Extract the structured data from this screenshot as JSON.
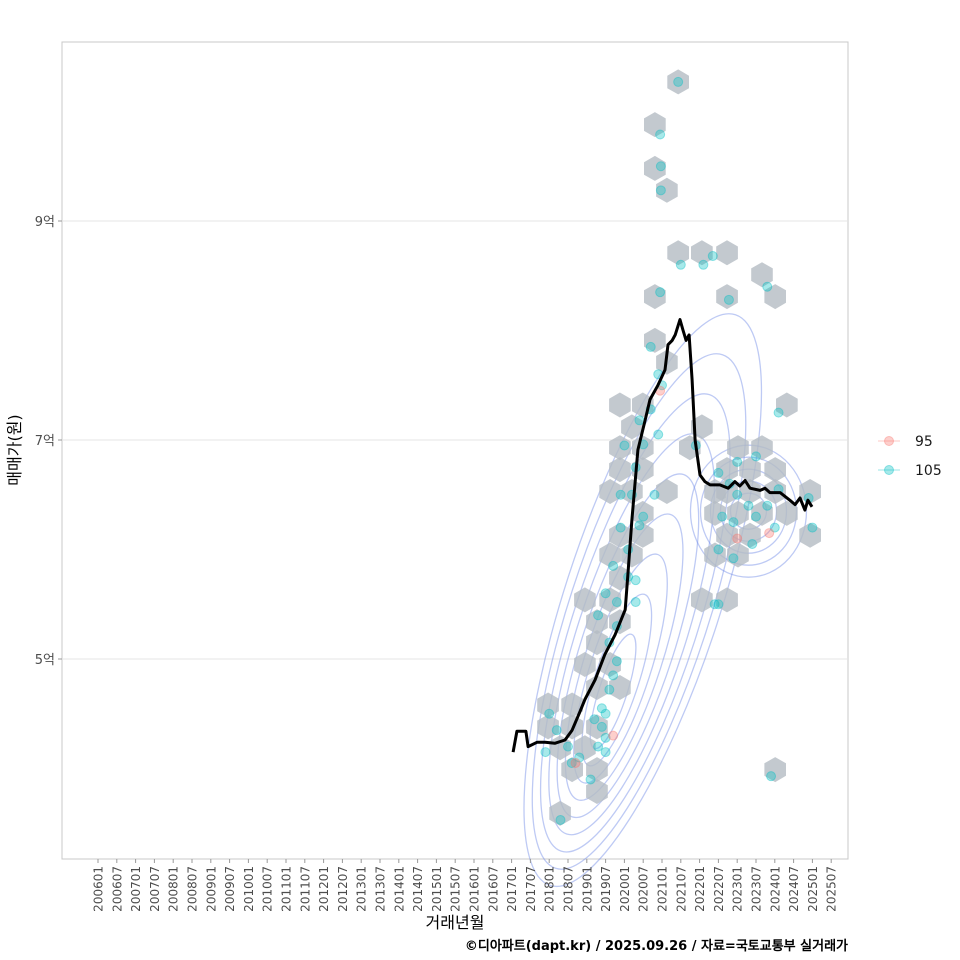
{
  "chart_data": {
    "type": "scatter",
    "title": "",
    "xlabel": "거래년월",
    "ylabel": "매매가(원)",
    "caption": "©디아파트(dapt.kr) / 2025.09.26 / 자료=국토교통부 실거래가",
    "xlim": [
      2004.9,
      2025.9
    ],
    "ylim": [
      3.17,
      10.63
    ],
    "y_unit": "억",
    "grid": "horizontal",
    "x_ticks": [
      "200601",
      "200607",
      "200701",
      "200707",
      "200801",
      "200807",
      "200901",
      "200907",
      "201001",
      "201007",
      "201101",
      "201107",
      "201201",
      "201207",
      "201301",
      "201307",
      "201401",
      "201407",
      "201501",
      "201507",
      "201601",
      "201607",
      "201701",
      "201707",
      "201801",
      "201807",
      "201901",
      "201907",
      "202001",
      "202007",
      "202101",
      "202107",
      "202201",
      "202207",
      "202301",
      "202307",
      "202401",
      "202407",
      "202501",
      "202507"
    ],
    "y_ticks": [
      {
        "value": 5,
        "label": "5억"
      },
      {
        "value": 7,
        "label": "7억"
      },
      {
        "value": 9,
        "label": "9억"
      }
    ],
    "legend": {
      "placement": "right",
      "entries": [
        {
          "name": "95",
          "color": "#f8766d"
        },
        {
          "name": "105",
          "color": "#00bfc4"
        }
      ]
    },
    "colors": {
      "hex": "#b4bbc3",
      "contour": "#6f8ae6",
      "line": "#000000",
      "grid": "#e5e5e5"
    },
    "hexbins": [
      [
        2021.43,
        10.27
      ],
      [
        2020.81,
        9.88
      ],
      [
        2020.81,
        9.48
      ],
      [
        2021.13,
        9.28
      ],
      [
        2021.43,
        8.71
      ],
      [
        2022.06,
        8.71
      ],
      [
        2022.73,
        8.71
      ],
      [
        2023.66,
        8.51
      ],
      [
        2024.01,
        8.31
      ],
      [
        2020.81,
        8.31
      ],
      [
        2022.73,
        8.31
      ],
      [
        2024.32,
        7.32
      ],
      [
        2020.81,
        7.91
      ],
      [
        2021.13,
        7.71
      ],
      [
        2019.88,
        7.32
      ],
      [
        2020.49,
        7.32
      ],
      [
        2020.2,
        7.12
      ],
      [
        2019.88,
        6.93
      ],
      [
        2020.49,
        6.93
      ],
      [
        2022.06,
        7.12
      ],
      [
        2021.74,
        6.93
      ],
      [
        2022.41,
        6.53
      ],
      [
        2023.02,
        6.93
      ],
      [
        2023.66,
        6.93
      ],
      [
        2023.34,
        6.73
      ],
      [
        2022.73,
        6.73
      ],
      [
        2024.01,
        6.73
      ],
      [
        2019.62,
        6.53
      ],
      [
        2020.2,
        6.53
      ],
      [
        2020.49,
        6.73
      ],
      [
        2021.13,
        6.53
      ],
      [
        2019.88,
        6.73
      ],
      [
        2020.49,
        6.33
      ],
      [
        2019.88,
        6.13
      ],
      [
        2020.49,
        6.13
      ],
      [
        2022.73,
        6.53
      ],
      [
        2023.34,
        6.53
      ],
      [
        2024.01,
        6.53
      ],
      [
        2024.94,
        6.53
      ],
      [
        2022.41,
        6.33
      ],
      [
        2023.02,
        6.33
      ],
      [
        2023.66,
        6.33
      ],
      [
        2024.32,
        6.33
      ],
      [
        2022.73,
        6.13
      ],
      [
        2023.34,
        6.13
      ],
      [
        2024.94,
        6.13
      ],
      [
        2019.62,
        5.95
      ],
      [
        2020.2,
        5.95
      ],
      [
        2022.41,
        5.95
      ],
      [
        2023.02,
        5.95
      ],
      [
        2019.88,
        5.74
      ],
      [
        2022.06,
        5.54
      ],
      [
        2022.73,
        5.54
      ],
      [
        2018.95,
        5.54
      ],
      [
        2019.62,
        5.54
      ],
      [
        2019.27,
        5.34
      ],
      [
        2019.88,
        5.34
      ],
      [
        2019.27,
        5.15
      ],
      [
        2019.62,
        4.95
      ],
      [
        2019.88,
        4.74
      ],
      [
        2018.95,
        4.95
      ],
      [
        2019.27,
        4.74
      ],
      [
        2018.61,
        4.58
      ],
      [
        2017.97,
        4.58
      ],
      [
        2017.97,
        4.38
      ],
      [
        2018.61,
        4.38
      ],
      [
        2019.27,
        4.38
      ],
      [
        2018.29,
        4.19
      ],
      [
        2018.95,
        4.19
      ],
      [
        2018.61,
        3.99
      ],
      [
        2019.27,
        3.99
      ],
      [
        2019.27,
        3.79
      ],
      [
        2018.29,
        3.59
      ],
      [
        2024.01,
        3.99
      ]
    ],
    "series": [
      {
        "name": "105",
        "points": [
          [
            2021.43,
            10.27
          ],
          [
            2020.95,
            9.79
          ],
          [
            2020.97,
            9.5
          ],
          [
            2020.97,
            9.28
          ],
          [
            2021.5,
            8.6
          ],
          [
            2022.1,
            8.6
          ],
          [
            2022.35,
            8.68
          ],
          [
            2022.78,
            8.28
          ],
          [
            2023.8,
            8.4
          ],
          [
            2024.1,
            7.25
          ],
          [
            2020.95,
            8.35
          ],
          [
            2020.7,
            7.85
          ],
          [
            2020.9,
            7.6
          ],
          [
            2021.0,
            7.5
          ],
          [
            2020.7,
            7.28
          ],
          [
            2020.4,
            7.18
          ],
          [
            2020.9,
            7.05
          ],
          [
            2020.5,
            6.96
          ],
          [
            2020.0,
            6.95
          ],
          [
            2020.3,
            6.75
          ],
          [
            2020.8,
            6.5
          ],
          [
            2019.9,
            6.5
          ],
          [
            2020.2,
            6.5
          ],
          [
            2020.5,
            6.3
          ],
          [
            2019.9,
            6.2
          ],
          [
            2020.4,
            6.22
          ],
          [
            2020.1,
            6.0
          ],
          [
            2019.7,
            5.85
          ],
          [
            2020.1,
            5.75
          ],
          [
            2020.3,
            5.72
          ],
          [
            2019.5,
            5.6
          ],
          [
            2019.8,
            5.52
          ],
          [
            2020.3,
            5.52
          ],
          [
            2019.3,
            5.4
          ],
          [
            2019.8,
            5.3
          ],
          [
            2019.6,
            5.15
          ],
          [
            2019.8,
            4.98
          ],
          [
            2019.7,
            4.85
          ],
          [
            2019.6,
            4.72
          ],
          [
            2019.4,
            4.55
          ],
          [
            2019.5,
            4.5
          ],
          [
            2019.2,
            4.45
          ],
          [
            2019.4,
            4.38
          ],
          [
            2019.5,
            4.28
          ],
          [
            2019.3,
            4.2
          ],
          [
            2019.5,
            4.15
          ],
          [
            2018.8,
            4.1
          ],
          [
            2018.5,
            4.2
          ],
          [
            2018.2,
            4.35
          ],
          [
            2018.0,
            4.5
          ],
          [
            2017.9,
            4.15
          ],
          [
            2018.6,
            4.05
          ],
          [
            2019.1,
            3.9
          ],
          [
            2018.3,
            3.53
          ],
          [
            2022.5,
            6.7
          ],
          [
            2022.8,
            6.6
          ],
          [
            2023.0,
            6.5
          ],
          [
            2023.3,
            6.4
          ],
          [
            2022.6,
            6.3
          ],
          [
            2022.9,
            6.25
          ],
          [
            2023.5,
            6.3
          ],
          [
            2023.8,
            6.4
          ],
          [
            2024.1,
            6.55
          ],
          [
            2023.0,
            6.8
          ],
          [
            2023.5,
            6.85
          ],
          [
            2022.5,
            6.0
          ],
          [
            2022.9,
            5.92
          ],
          [
            2023.4,
            6.05
          ],
          [
            2024.0,
            6.2
          ],
          [
            2024.9,
            6.47
          ],
          [
            2025.0,
            6.2
          ],
          [
            2022.4,
            5.5
          ],
          [
            2022.5,
            5.5
          ],
          [
            2021.9,
            6.95
          ],
          [
            2023.9,
            3.93
          ]
        ]
      },
      {
        "name": "95",
        "points": [
          [
            2020.95,
            7.45
          ],
          [
            2018.7,
            4.05
          ],
          [
            2023.0,
            6.1
          ],
          [
            2023.85,
            6.15
          ],
          [
            2019.7,
            4.3
          ]
        ]
      }
    ],
    "moving_average": [
      [
        2017.04,
        4.15
      ],
      [
        2017.14,
        4.34
      ],
      [
        2017.38,
        4.34
      ],
      [
        2017.44,
        4.2
      ],
      [
        2017.68,
        4.24
      ],
      [
        2017.89,
        4.24
      ],
      [
        2018.15,
        4.23
      ],
      [
        2018.42,
        4.26
      ],
      [
        2018.61,
        4.35
      ],
      [
        2018.82,
        4.52
      ],
      [
        2018.95,
        4.63
      ],
      [
        2019.22,
        4.81
      ],
      [
        2019.48,
        5.04
      ],
      [
        2019.75,
        5.22
      ],
      [
        2020.02,
        5.45
      ],
      [
        2020.1,
        5.81
      ],
      [
        2020.2,
        6.27
      ],
      [
        2020.36,
        6.91
      ],
      [
        2020.55,
        7.18
      ],
      [
        2020.68,
        7.37
      ],
      [
        2020.89,
        7.5
      ],
      [
        2021.08,
        7.64
      ],
      [
        2021.16,
        7.87
      ],
      [
        2021.27,
        7.91
      ],
      [
        2021.35,
        7.96
      ],
      [
        2021.48,
        8.1
      ],
      [
        2021.56,
        8.0
      ],
      [
        2021.64,
        7.91
      ],
      [
        2021.72,
        7.96
      ],
      [
        2021.8,
        7.55
      ],
      [
        2021.88,
        7.0
      ],
      [
        2022.01,
        6.68
      ],
      [
        2022.14,
        6.62
      ],
      [
        2022.28,
        6.59
      ],
      [
        2022.54,
        6.59
      ],
      [
        2022.76,
        6.56
      ],
      [
        2022.94,
        6.62
      ],
      [
        2023.07,
        6.58
      ],
      [
        2023.21,
        6.63
      ],
      [
        2023.34,
        6.56
      ],
      [
        2023.61,
        6.54
      ],
      [
        2023.74,
        6.56
      ],
      [
        2023.87,
        6.52
      ],
      [
        2024.14,
        6.52
      ],
      [
        2024.4,
        6.45
      ],
      [
        2024.54,
        6.41
      ],
      [
        2024.67,
        6.47
      ],
      [
        2024.8,
        6.36
      ],
      [
        2024.88,
        6.45
      ],
      [
        2024.99,
        6.39
      ]
    ],
    "density_contours": [
      {
        "center": [
          2019.6,
          4.6
        ],
        "levels": 9
      },
      {
        "center": [
          2023.3,
          6.35
        ],
        "levels": 5
      }
    ]
  }
}
